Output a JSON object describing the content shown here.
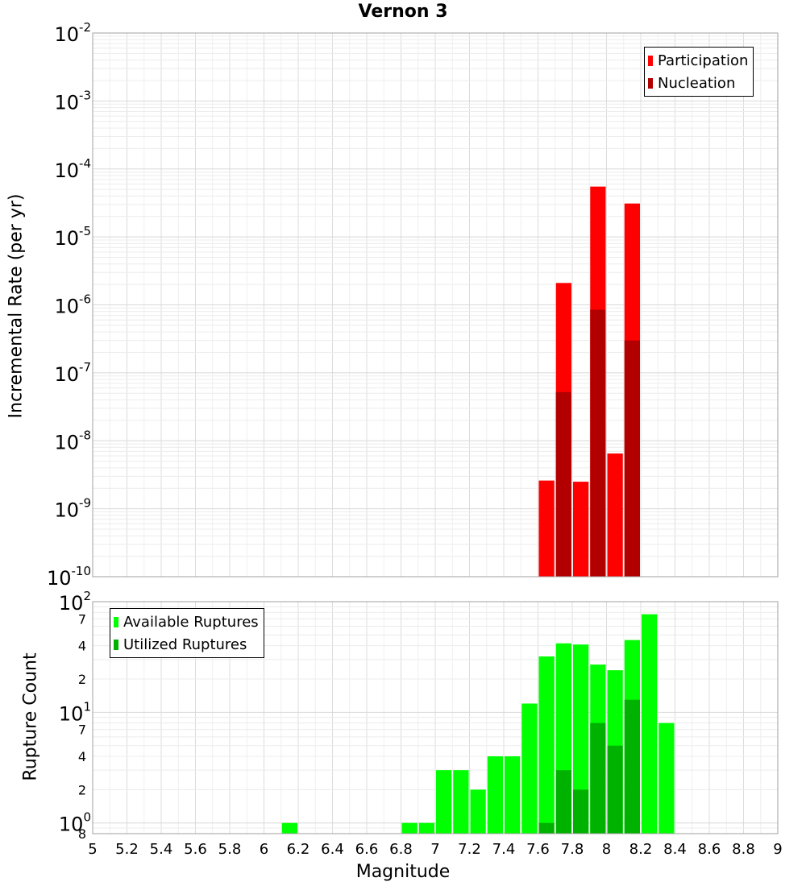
{
  "chart_data": [
    {
      "type": "bar",
      "title": "Vernon 3",
      "ylabel": "Incremental Rate (per yr)",
      "yscale": "log",
      "ylim": [
        1e-10,
        0.01
      ],
      "xlim": [
        5,
        9
      ],
      "bin_width": 0.1,
      "yticks": [
        {
          "base": "10",
          "exp": "-2"
        },
        {
          "base": "10",
          "exp": "-3"
        },
        {
          "base": "10",
          "exp": "-4"
        },
        {
          "base": "10",
          "exp": "-5"
        },
        {
          "base": "10",
          "exp": "-6"
        },
        {
          "base": "10",
          "exp": "-7"
        },
        {
          "base": "10",
          "exp": "-8"
        },
        {
          "base": "10",
          "exp": "-9"
        },
        {
          "base": "10",
          "exp": "-10"
        }
      ],
      "legend": {
        "position": "top-right",
        "entries": [
          {
            "label": "Participation",
            "color": "#ff0000"
          },
          {
            "label": "Nucleation",
            "color": "#b20000"
          }
        ]
      },
      "series": [
        {
          "name": "Participation",
          "color": "#ff0000",
          "points": [
            [
              7.65,
              2.6e-09
            ],
            [
              7.75,
              2.1e-06
            ],
            [
              7.85,
              2.5e-09
            ],
            [
              7.95,
              5.5e-05
            ],
            [
              8.05,
              6.5e-09
            ],
            [
              8.15,
              3.1e-05
            ]
          ]
        },
        {
          "name": "Nucleation",
          "color": "#b20000",
          "points": [
            [
              7.75,
              5.2e-08
            ],
            [
              7.95,
              8.5e-07
            ],
            [
              8.15,
              3e-07
            ]
          ]
        }
      ]
    },
    {
      "type": "bar",
      "xlabel": "Magnitude",
      "ylabel": "Rupture Count",
      "yscale": "log",
      "ylim": [
        0.8,
        100
      ],
      "xlim": [
        5,
        9
      ],
      "bin_width": 0.1,
      "xticks": [
        "5",
        "5.2",
        "5.4",
        "5.6",
        "5.8",
        "6",
        "6.2",
        "6.4",
        "6.6",
        "6.8",
        "7",
        "7.2",
        "7.4",
        "7.6",
        "7.8",
        "8",
        "8.2",
        "8.4",
        "8.6",
        "8.8",
        "9"
      ],
      "major_yticks": [
        {
          "value": 100,
          "base": "10",
          "exp": "2"
        },
        {
          "value": 10,
          "base": "10",
          "exp": "1"
        },
        {
          "value": 1,
          "base": "10",
          "exp": "0"
        }
      ],
      "minor_yticks": [
        {
          "value": 70,
          "label": "7"
        },
        {
          "value": 40,
          "label": "4"
        },
        {
          "value": 20,
          "label": "2"
        },
        {
          "value": 7,
          "label": "7"
        },
        {
          "value": 4,
          "label": "4"
        },
        {
          "value": 2,
          "label": "2"
        },
        {
          "value": 0.8,
          "label": "8"
        }
      ],
      "legend": {
        "position": "top-left",
        "entries": [
          {
            "label": "Available Ruptures",
            "color": "#00ff00"
          },
          {
            "label": "Utilized Ruptures",
            "color": "#00b200"
          }
        ]
      },
      "series": [
        {
          "name": "Available Ruptures",
          "color": "#00ff00",
          "points": [
            [
              6.15,
              1
            ],
            [
              6.85,
              1
            ],
            [
              6.95,
              1
            ],
            [
              7.05,
              3
            ],
            [
              7.15,
              3
            ],
            [
              7.25,
              2
            ],
            [
              7.35,
              4
            ],
            [
              7.45,
              4
            ],
            [
              7.55,
              12
            ],
            [
              7.65,
              32
            ],
            [
              7.75,
              42
            ],
            [
              7.85,
              41
            ],
            [
              7.95,
              27
            ],
            [
              8.05,
              24
            ],
            [
              8.15,
              45
            ],
            [
              8.25,
              77
            ],
            [
              8.35,
              8
            ]
          ]
        },
        {
          "name": "Utilized Ruptures",
          "color": "#00b200",
          "points": [
            [
              7.65,
              1
            ],
            [
              7.75,
              3
            ],
            [
              7.85,
              2
            ],
            [
              7.95,
              8
            ],
            [
              8.05,
              5
            ],
            [
              8.15,
              13
            ]
          ]
        }
      ]
    }
  ]
}
